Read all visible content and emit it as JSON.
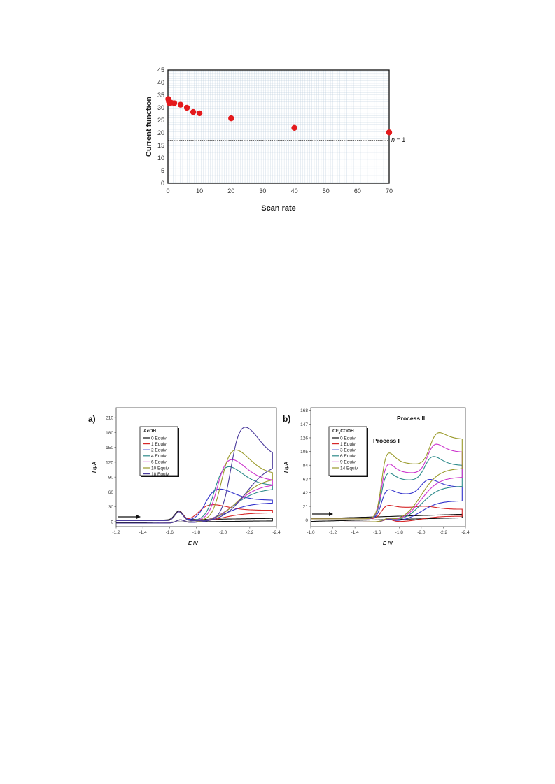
{
  "chart_data": [
    {
      "type": "scatter",
      "xlabel": "Scan rate",
      "ylabel": "Current function",
      "xlim": [
        0,
        70
      ],
      "ylim": [
        0,
        45
      ],
      "xticks": [
        0,
        10,
        20,
        30,
        40,
        50,
        60,
        70
      ],
      "yticks": [
        0,
        5,
        10,
        15,
        20,
        25,
        30,
        35,
        40,
        45
      ],
      "grid": true,
      "points": [
        {
          "x": 0.1,
          "y": 33.5
        },
        {
          "x": 0.3,
          "y": 32.5
        },
        {
          "x": 0.5,
          "y": 31.8
        },
        {
          "x": 1,
          "y": 32
        },
        {
          "x": 2,
          "y": 31.8
        },
        {
          "x": 4,
          "y": 31.2
        },
        {
          "x": 6,
          "y": 30
        },
        {
          "x": 8,
          "y": 28.3
        },
        {
          "x": 10,
          "y": 27.8
        },
        {
          "x": 20,
          "y": 25.8
        },
        {
          "x": 40,
          "y": 22
        },
        {
          "x": 70,
          "y": 20.2
        }
      ],
      "point_color": "#e41a1c",
      "reference_line": {
        "y": 17,
        "label_italic": "n",
        "label_rest": " = 1"
      }
    },
    {
      "type": "line",
      "panel_label": "a)",
      "xlabel_italic": "E",
      "xlabel_rest": " /V",
      "ylabel_italic": "I",
      "ylabel_rest": " /μA",
      "xlim": [
        -1.2,
        -2.4
      ],
      "ylim": [
        -10,
        230
      ],
      "xticks": [
        -1.2,
        -1.4,
        -1.6,
        -1.8,
        -2.0,
        -2.2,
        -2.4
      ],
      "xtick_labels": [
        "-1.2",
        "-1.4",
        "-1.6",
        "-1.8",
        "-2.0",
        "-2.2",
        "-2.4"
      ],
      "yticks": [
        0,
        30,
        60,
        90,
        120,
        150,
        180,
        210
      ],
      "legend_title": "AcOH",
      "legend_position": "top-left",
      "series": [
        {
          "name": "0 Equiv",
          "color": "#111111",
          "peak": 0
        },
        {
          "name": "1 Equiv",
          "color": "#d62728",
          "peak": 38
        },
        {
          "name": "2 Equiv",
          "color": "#3333cc",
          "peak": 75
        },
        {
          "name": "4 Equiv",
          "color": "#2e8b8b",
          "peak": 128
        },
        {
          "name": "6 Equiv",
          "color": "#cc33cc",
          "peak": 145
        },
        {
          "name": "10 Equiv",
          "color": "#9a9a2a",
          "peak": 168
        },
        {
          "name": "18 Equiv",
          "color": "#4b3b9c",
          "peak": 222
        }
      ],
      "arrow_direction": "right"
    },
    {
      "type": "line",
      "panel_label": "b)",
      "xlabel_italic": "E",
      "xlabel_rest": " /V",
      "ylabel_italic": "I",
      "ylabel_rest": " /μA",
      "xlim": [
        -1.0,
        -2.4
      ],
      "ylim": [
        -10,
        172
      ],
      "xticks": [
        -1.0,
        -1.2,
        -1.4,
        -1.6,
        -1.8,
        -2.0,
        -2.2,
        -2.4
      ],
      "xtick_labels": [
        "-1.0",
        "-1.2",
        "-1.4",
        "-1.6",
        "-1.8",
        "-2.0",
        "-2.2",
        "-2.4"
      ],
      "yticks": [
        0,
        21,
        42,
        63,
        84,
        105,
        126,
        147,
        168
      ],
      "legend_title_main": "CF",
      "legend_title_sub": "3",
      "legend_title_rest": "COOH",
      "legend_position": "top-left",
      "annotations": [
        "Process II",
        "Process I"
      ],
      "series": [
        {
          "name": "0 Equiv",
          "color": "#111111",
          "peak1": 0,
          "peak2": 0
        },
        {
          "name": "1 Equiv",
          "color": "#d62728",
          "peak1": 24,
          "peak2": 18
        },
        {
          "name": "3 Equiv",
          "color": "#3333cc",
          "peak1": 52,
          "peak2": 65
        },
        {
          "name": "6 Equiv",
          "color": "#2e8b8b",
          "peak1": 82,
          "peak2": 110
        },
        {
          "name": "9 Equiv",
          "color": "#cc33cc",
          "peak1": 98,
          "peak2": 138
        },
        {
          "name": "14 Equiv",
          "color": "#9a9a2a",
          "peak1": 118,
          "peak2": 165
        }
      ],
      "arrow_direction": "right"
    }
  ]
}
